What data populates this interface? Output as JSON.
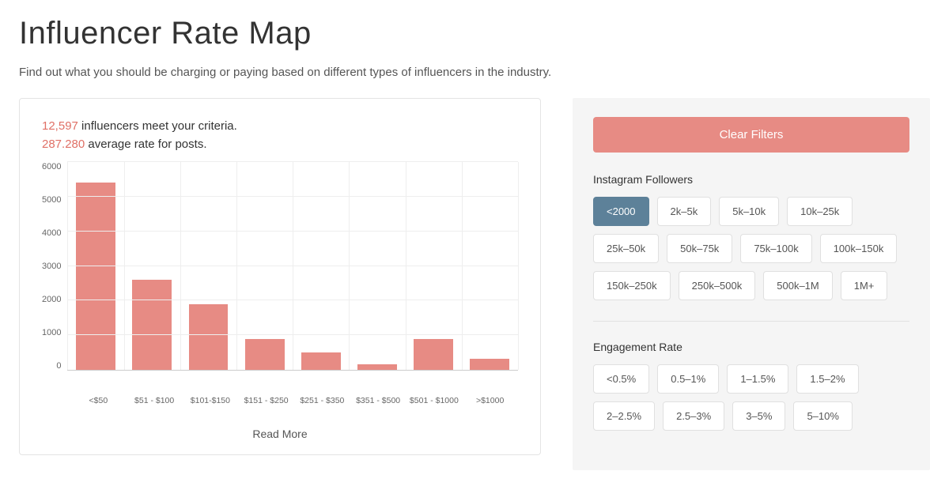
{
  "header": {
    "title": "Influencer Rate Map",
    "subtitle": "Find out what you should be charging or paying based on different types of influencers in the industry."
  },
  "stats": {
    "count_value": "12,597",
    "count_suffix": " influencers meet your criteria.",
    "rate_value": "287.280",
    "rate_suffix": " average rate for posts."
  },
  "chart": {
    "type": "bar",
    "y_max": 6000,
    "y_ticks": [
      6000,
      5000,
      4000,
      3000,
      2000,
      1000,
      0
    ],
    "categories": [
      "<$50",
      "$51 - $100",
      "$101-$150",
      "$151 - $250",
      "$251 - $350",
      "$351 - $500",
      "$501 - $1000",
      ">$1000"
    ],
    "values": [
      5400,
      2600,
      1900,
      900,
      500,
      150,
      880,
      310
    ],
    "bar_color": "#e78b84",
    "grid_color": "#eeeeee",
    "axis_color": "#cccccc",
    "label_fontsize": 11,
    "read_more_label": "Read More"
  },
  "filters": {
    "clear_label": "Clear Filters",
    "groups": [
      {
        "title": "Instagram Followers",
        "options": [
          {
            "label": "<2000",
            "active": true
          },
          {
            "label": "2k–5k",
            "active": false
          },
          {
            "label": "5k–10k",
            "active": false
          },
          {
            "label": "10k–25k",
            "active": false
          },
          {
            "label": "25k–50k",
            "active": false
          },
          {
            "label": "50k–75k",
            "active": false
          },
          {
            "label": "75k–100k",
            "active": false
          },
          {
            "label": "100k–150k",
            "active": false
          },
          {
            "label": "150k–250k",
            "active": false
          },
          {
            "label": "250k–500k",
            "active": false
          },
          {
            "label": "500k–1M",
            "active": false
          },
          {
            "label": "1M+",
            "active": false
          }
        ]
      },
      {
        "title": "Engagement Rate",
        "options": [
          {
            "label": "<0.5%",
            "active": false
          },
          {
            "label": "0.5–1%",
            "active": false
          },
          {
            "label": "1–1.5%",
            "active": false
          },
          {
            "label": "1.5–2%",
            "active": false
          },
          {
            "label": "2–2.5%",
            "active": false
          },
          {
            "label": "2.5–3%",
            "active": false
          },
          {
            "label": "3–5%",
            "active": false
          },
          {
            "label": "5–10%",
            "active": false
          }
        ]
      }
    ]
  },
  "colors": {
    "accent_text": "#e07066",
    "chip_active_bg": "#5d8199",
    "panel_bg": "#f5f5f5"
  }
}
